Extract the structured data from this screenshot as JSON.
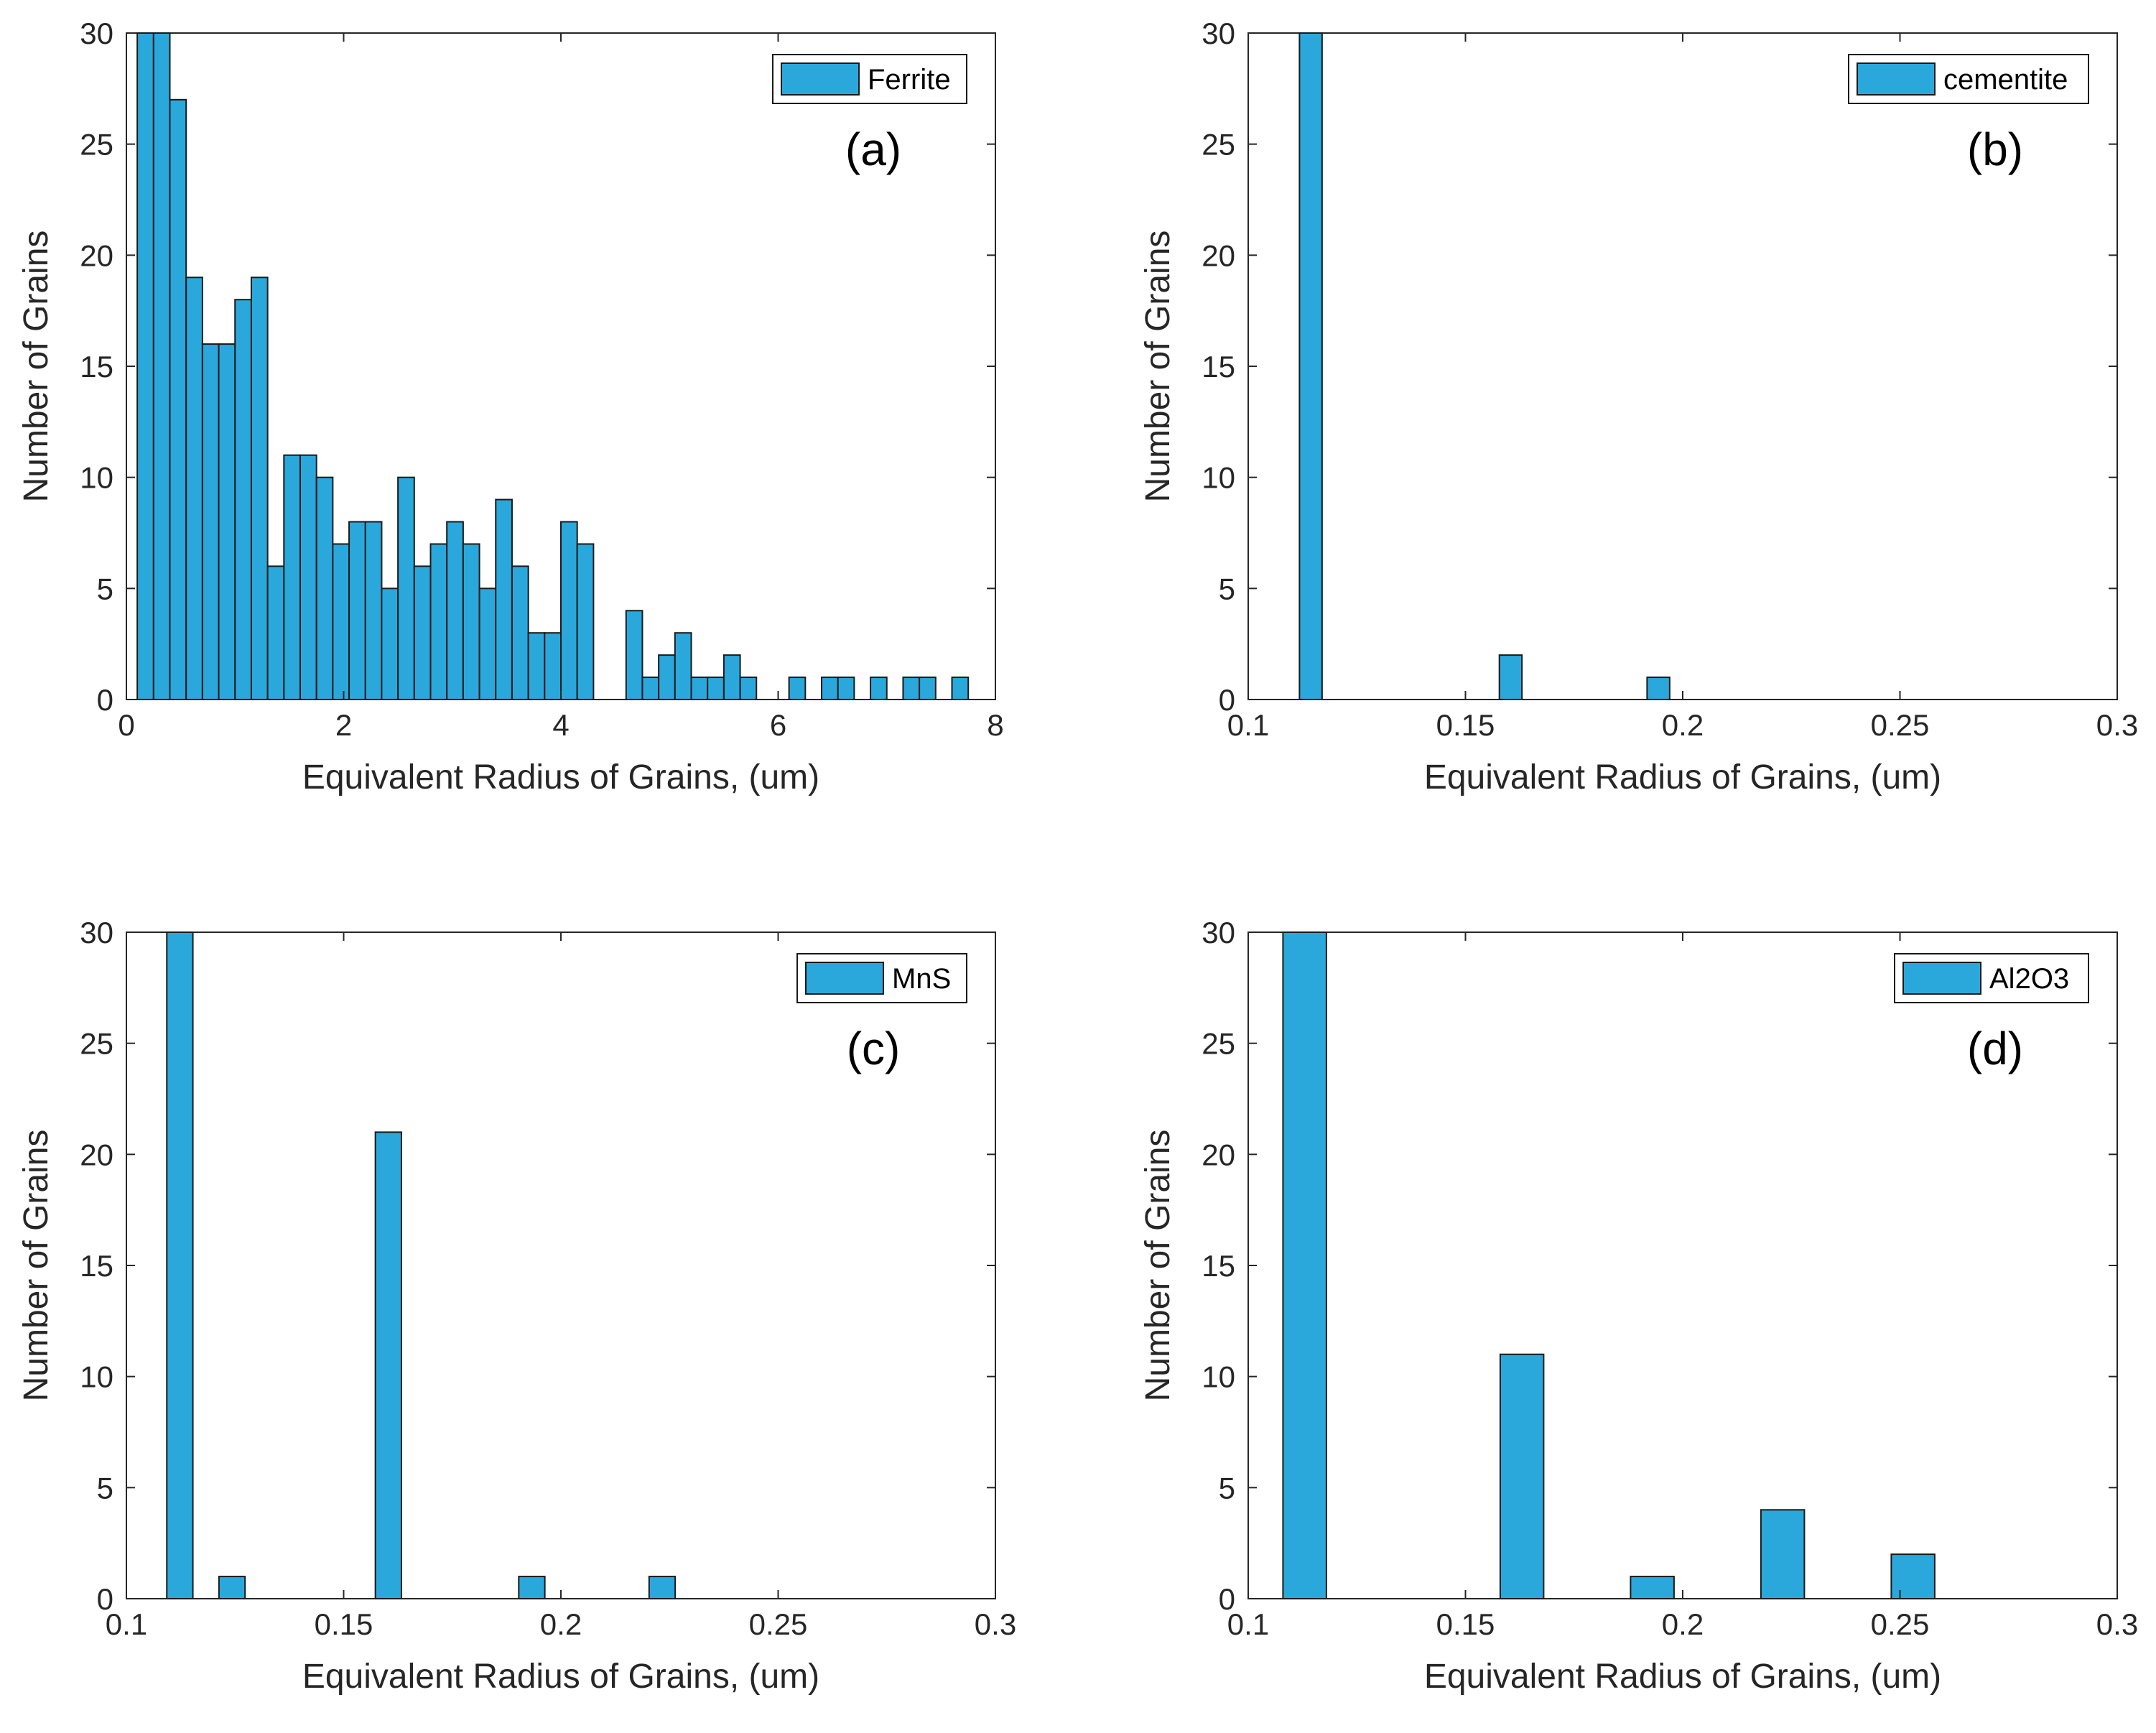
{
  "figure": {
    "bar_color": "#2aa8dc",
    "edge_color": "#1a1a1a",
    "grid_color": "#000000"
  },
  "chart_data": [
    {
      "type": "bar",
      "panel_label": "(a)",
      "legend": "Ferrite",
      "legend_position": "top-right",
      "xlabel": "Equivalent Radius of Grains, (um)",
      "ylabel": "Number of Grains",
      "xlim": [
        0,
        8
      ],
      "ylim": [
        0,
        30
      ],
      "xticks": [
        "0",
        "2",
        "4",
        "6",
        "8"
      ],
      "yticks": [
        "0",
        "5",
        "10",
        "15",
        "20",
        "25",
        "30"
      ],
      "bin_width": 0.15,
      "bin_left": [
        0.1,
        0.25,
        0.4,
        0.55,
        0.7,
        0.85,
        1.0,
        1.15,
        1.3,
        1.45,
        1.6,
        1.75,
        1.9,
        2.05,
        2.2,
        2.35,
        2.5,
        2.65,
        2.8,
        2.95,
        3.1,
        3.25,
        3.4,
        3.55,
        3.7,
        3.85,
        4.0,
        4.15,
        4.3,
        4.45,
        4.6,
        4.75,
        4.9,
        5.05,
        5.2,
        5.35,
        5.5,
        5.65,
        5.8,
        5.95,
        6.1,
        6.25,
        6.4,
        6.55,
        6.7,
        6.85,
        7.0,
        7.15,
        7.3,
        7.45,
        7.6
      ],
      "values": [
        30,
        30,
        27,
        19,
        16,
        16,
        18,
        19,
        6,
        11,
        11,
        10,
        7,
        8,
        8,
        5,
        10,
        6,
        7,
        8,
        7,
        5,
        9,
        6,
        3,
        3,
        8,
        7,
        0,
        0,
        4,
        1,
        2,
        3,
        1,
        1,
        2,
        1,
        0,
        0,
        1,
        0,
        1,
        1,
        0,
        1,
        0,
        1,
        1,
        0,
        1
      ]
    },
    {
      "type": "bar",
      "panel_label": "(b)",
      "legend": "cementite",
      "legend_position": "top-right",
      "xlabel": "Equivalent Radius of Grains, (um)",
      "ylabel": "Number of Grains",
      "xlim": [
        0.1,
        0.3
      ],
      "ylim": [
        0,
        30
      ],
      "xticks": [
        "0.1",
        "0.15",
        "0.2",
        "0.25",
        "0.3"
      ],
      "yticks": [
        "0",
        "5",
        "10",
        "15",
        "20",
        "25",
        "30"
      ],
      "bin_width": 0.0052,
      "bin_left": [
        0.1118,
        0.1578,
        0.1918
      ],
      "values": [
        30,
        2,
        1
      ]
    },
    {
      "type": "bar",
      "panel_label": "(c)",
      "legend": "MnS",
      "legend_position": "top-right",
      "xlabel": "Equivalent Radius of Grains, (um)",
      "ylabel": "Number of Grains",
      "xlim": [
        0.1,
        0.3
      ],
      "ylim": [
        0,
        30
      ],
      "xticks": [
        "0.1",
        "0.15",
        "0.2",
        "0.25",
        "0.3"
      ],
      "yticks": [
        "0",
        "5",
        "10",
        "15",
        "20",
        "25",
        "30"
      ],
      "bin_width": 0.006,
      "bin_left": [
        0.1093,
        0.1213,
        0.1573,
        0.1903,
        0.2203
      ],
      "values": [
        30,
        1,
        21,
        1,
        1
      ]
    },
    {
      "type": "bar",
      "panel_label": "(d)",
      "legend": "Al2O3",
      "legend_position": "top-right",
      "xlabel": "Equivalent Radius of Grains, (um)",
      "ylabel": "Number of Grains",
      "xlim": [
        0.1,
        0.3
      ],
      "ylim": [
        0,
        30
      ],
      "xticks": [
        "0.1",
        "0.15",
        "0.2",
        "0.25",
        "0.3"
      ],
      "yticks": [
        "0",
        "5",
        "10",
        "15",
        "20",
        "25",
        "30"
      ],
      "bin_width": 0.01,
      "bin_left": [
        0.108,
        0.158,
        0.188,
        0.218,
        0.248
      ],
      "values": [
        30,
        11,
        1,
        4,
        2
      ]
    }
  ]
}
